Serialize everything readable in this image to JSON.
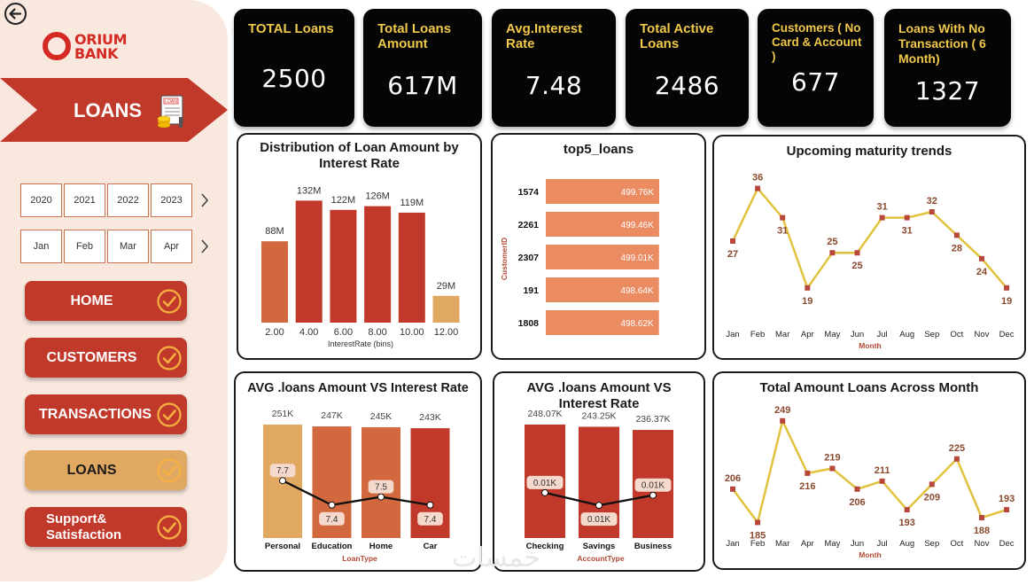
{
  "sidebar": {
    "brand_text": "ORIUM\nBANK",
    "banner_label": "LOANS",
    "years": [
      "2020",
      "2021",
      "2022",
      "2023"
    ],
    "months": [
      "Jan",
      "Feb",
      "Mar",
      "Apr"
    ],
    "arrow_icon": "chevron-right-icon",
    "nav": [
      {
        "label": "HOME",
        "active": false
      },
      {
        "label": "CUSTOMERS",
        "active": false
      },
      {
        "label": "TRANSACTIONS",
        "active": false
      },
      {
        "label": "LOANS",
        "active": true
      },
      {
        "label": "Support&\nSatisfaction",
        "active": false
      }
    ],
    "colors": {
      "accent": "#c0392b",
      "active": "#e1a862",
      "check": "#f5b041"
    }
  },
  "kpis": [
    {
      "title": "TOTAL Loans",
      "value": "2500"
    },
    {
      "title": "Total Loans Amount",
      "value": "617M"
    },
    {
      "title": "Avg.Interest Rate",
      "value": "7.48"
    },
    {
      "title": "Total Active Loans",
      "value": "2486"
    },
    {
      "title": "Customers ( No Card & Account )",
      "value": "677"
    },
    {
      "title": "Loans With No Transaction ( 6 Month)",
      "value": "1327"
    }
  ],
  "chart_data": [
    {
      "id": "dist",
      "type": "bar",
      "title": "Distribution of Loan Amount by Interest Rate",
      "xlabel": "InterestRate (bins)",
      "categories": [
        "2.00",
        "4.00",
        "6.00",
        "8.00",
        "10.00",
        "12.00"
      ],
      "values": [
        88,
        132,
        122,
        126,
        119,
        29
      ],
      "data_labels": [
        "88M",
        "132M",
        "122M",
        "126M",
        "119M",
        "29M"
      ],
      "colors": [
        "#d2693e",
        "#c0392b",
        "#c0392b",
        "#c0392b",
        "#c0392b",
        "#e1a862"
      ],
      "ylim": [
        0,
        140
      ]
    },
    {
      "id": "top5",
      "type": "bar",
      "orientation": "horizontal",
      "title": "top5_loans",
      "ylabel": "CustomerID",
      "categories": [
        "1574",
        "2261",
        "2307",
        "191",
        "1808"
      ],
      "values": [
        499.76,
        499.46,
        499.01,
        498.64,
        498.62
      ],
      "data_labels": [
        "499.76K",
        "499.46K",
        "499.01K",
        "498.64K",
        "498.62K"
      ],
      "color": "#eb8b62"
    },
    {
      "id": "maturity",
      "type": "line",
      "title": "Upcoming maturity trends",
      "xlabel": "Month",
      "categories": [
        "Jan",
        "Feb",
        "Mar",
        "Apr",
        "May",
        "Jun",
        "Jul",
        "Aug",
        "Sep",
        "Oct",
        "Nov",
        "Dec"
      ],
      "values": [
        27,
        36,
        31,
        19,
        25,
        25,
        31,
        31,
        32,
        28,
        24,
        19
      ],
      "ylim": [
        17,
        37
      ],
      "line_color": "#e0c23c",
      "marker_color": "#b7473a"
    },
    {
      "id": "loantype",
      "type": "bar",
      "title": "AVG .loans Amount VS Interest Rate",
      "xlabel": "LoanType",
      "categories": [
        "Personal",
        "Education",
        "Home",
        "Car"
      ],
      "values": [
        251,
        247,
        245,
        243
      ],
      "data_labels": [
        "251K",
        "247K",
        "245K",
        "243K"
      ],
      "colors": [
        "#e1a862",
        "#d2693e",
        "#d2693e",
        "#c0392b"
      ],
      "line_values": [
        7.7,
        7.4,
        7.5,
        7.4
      ],
      "line_labels": [
        "7.7",
        "7.4",
        "7.5",
        "7.4"
      ],
      "ylim": [
        0,
        251
      ]
    },
    {
      "id": "accounttype",
      "type": "bar",
      "title": "AVG .loans Amount VS Interest Rate",
      "xlabel": "AccountType",
      "categories": [
        "Checking",
        "Savings",
        "Business"
      ],
      "values": [
        248.07,
        243.25,
        236.37
      ],
      "data_labels": [
        "248.07K",
        "243.25K",
        "236.37K"
      ],
      "colors": [
        "#c0392b",
        "#c0392b",
        "#c0392b"
      ],
      "line_values": [
        0.0102,
        0.0097,
        0.0101
      ],
      "line_labels": [
        "0.01K",
        "0.01K",
        "0.01K"
      ],
      "ylim": [
        0,
        248.07
      ]
    },
    {
      "id": "monthly",
      "type": "line",
      "title": "Total Amount Loans Across Month",
      "xlabel": "Month",
      "categories": [
        "Jan",
        "Feb",
        "Mar",
        "Apr",
        "May",
        "Jun",
        "Jul",
        "Aug",
        "Sep",
        "Oct",
        "Nov",
        "Dec"
      ],
      "values": [
        206,
        185,
        249,
        216,
        219,
        206,
        211,
        193,
        209,
        225,
        188,
        193
      ],
      "ylim": [
        183,
        250
      ],
      "line_color": "#e0c23c",
      "marker_color": "#b7473a"
    }
  ]
}
